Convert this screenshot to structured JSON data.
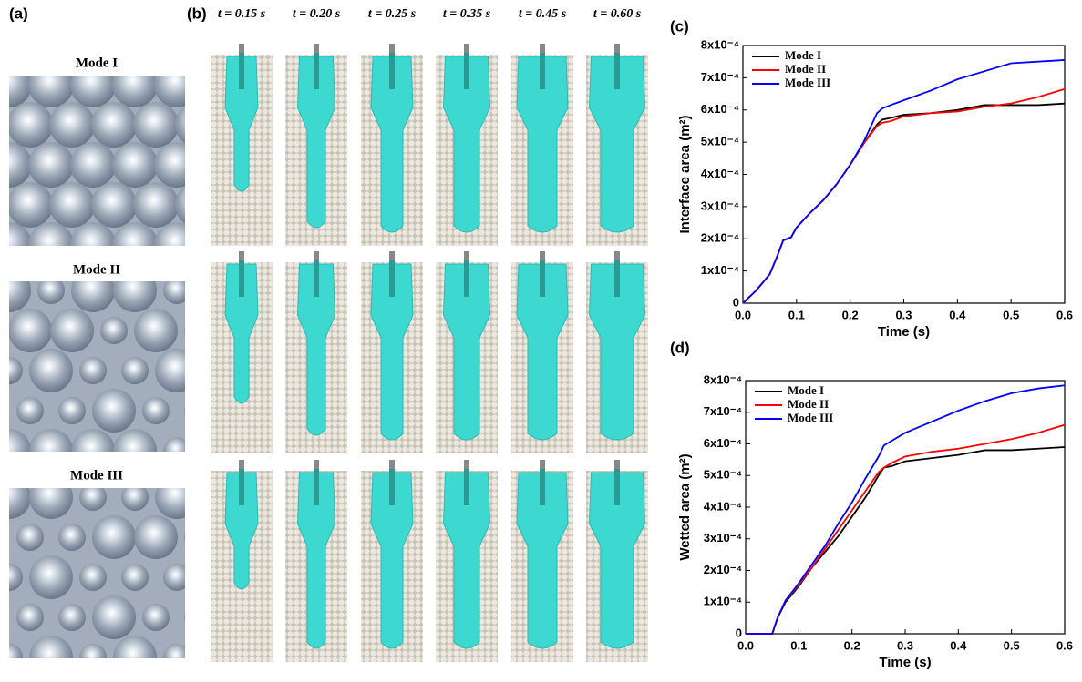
{
  "panels": {
    "a_label": "(a)",
    "b_label": "(b)",
    "c_label": "(c)",
    "d_label": "(d)",
    "modes": [
      "Mode I",
      "Mode II",
      "Mode III"
    ],
    "time_labels": [
      "t = 0.15 s",
      "t = 0.20 s",
      "t = 0.25 s",
      "t = 0.35 s",
      "t = 0.45 s",
      "t = 0.60 s"
    ]
  },
  "chart_data": [
    {
      "type": "line",
      "xlabel": "Time (s)",
      "ylabel": "Interface area (m²)",
      "legend": "upper left",
      "xlim": [
        0,
        0.6
      ],
      "xticks": [
        {
          "value": 0,
          "label": "0.0"
        },
        0.1,
        0.2,
        0.3,
        0.4,
        0.5,
        0.6
      ],
      "ylim": [
        0,
        0.0008
      ],
      "yticks": [
        0,
        {
          "value": 0.0001,
          "label": "1x10⁻⁴"
        },
        {
          "value": 0.0002,
          "label": "2x10⁻⁴"
        },
        {
          "value": 0.0003,
          "label": "3x10⁻⁴"
        },
        {
          "value": 0.0004,
          "label": "4x10⁻⁴"
        },
        {
          "value": 0.0005,
          "label": "5x10⁻⁴"
        },
        {
          "value": 0.0006,
          "label": "6x10⁻⁴"
        },
        {
          "value": 0.0007,
          "label": "7x10⁻⁴"
        },
        {
          "value": 0.0008,
          "label": "8x10⁻⁴"
        }
      ],
      "x": [
        0,
        0.025,
        0.05,
        0.065,
        0.075,
        0.09,
        0.1,
        0.125,
        0.15,
        0.175,
        0.2,
        0.225,
        0.25,
        0.26,
        0.275,
        0.3,
        0.35,
        0.4,
        0.45,
        0.5,
        0.55,
        0.6
      ],
      "series": [
        {
          "name": "Mode I",
          "color": "#000000",
          "values": [
            0,
            4e-05,
            9e-05,
            0.00015,
            0.000195,
            0.000205,
            0.000235,
            0.00028,
            0.00032,
            0.00037,
            0.00043,
            0.000495,
            0.000555,
            0.00057,
            0.000575,
            0.000585,
            0.00059,
            0.0006,
            0.000615,
            0.000615,
            0.000615,
            0.00062
          ]
        },
        {
          "name": "Mode II",
          "color": "#ff0000",
          "values": [
            0,
            4e-05,
            9e-05,
            0.00015,
            0.000195,
            0.000205,
            0.000235,
            0.00028,
            0.00032,
            0.00037,
            0.00043,
            0.000495,
            0.00055,
            0.00056,
            0.000565,
            0.00058,
            0.00059,
            0.000595,
            0.00061,
            0.00062,
            0.00064,
            0.000665
          ]
        },
        {
          "name": "Mode III",
          "color": "#0000ff",
          "values": [
            0,
            4e-05,
            9e-05,
            0.00015,
            0.000195,
            0.000205,
            0.000235,
            0.00028,
            0.00032,
            0.00037,
            0.00043,
            0.0005,
            0.00059,
            0.000605,
            0.000615,
            0.00063,
            0.00066,
            0.000695,
            0.00072,
            0.000745,
            0.00075,
            0.000755
          ]
        }
      ]
    },
    {
      "type": "line",
      "xlabel": "Time (s)",
      "ylabel": "Wetted area (m²)",
      "legend": "upper left",
      "xlim": [
        0,
        0.6
      ],
      "xticks": [
        {
          "value": 0,
          "label": "0.0"
        },
        0.1,
        0.2,
        0.3,
        0.4,
        0.5,
        0.6
      ],
      "ylim": [
        0,
        0.0008
      ],
      "yticks": [
        0,
        {
          "value": 0.0001,
          "label": "1x10⁻⁴"
        },
        {
          "value": 0.0002,
          "label": "2x10⁻⁴"
        },
        {
          "value": 0.0003,
          "label": "3x10⁻⁴"
        },
        {
          "value": 0.0004,
          "label": "4x10⁻⁴"
        },
        {
          "value": 0.0005,
          "label": "5x10⁻⁴"
        },
        {
          "value": 0.0006,
          "label": "6x10⁻⁴"
        },
        {
          "value": 0.0007,
          "label": "7x10⁻⁴"
        },
        {
          "value": 0.0008,
          "label": "8x10⁻⁴"
        }
      ],
      "x": [
        0,
        0.05,
        0.06,
        0.075,
        0.1,
        0.125,
        0.15,
        0.175,
        0.2,
        0.225,
        0.25,
        0.26,
        0.275,
        0.3,
        0.35,
        0.4,
        0.45,
        0.5,
        0.55,
        0.6
      ],
      "series": [
        {
          "name": "Mode I",
          "color": "#000000",
          "values": [
            0,
            0,
            5e-05,
            0.0001,
            0.00015,
            0.00021,
            0.00026,
            0.00031,
            0.00037,
            0.00043,
            0.0005,
            0.000525,
            0.00053,
            0.000545,
            0.000555,
            0.000565,
            0.00058,
            0.00058,
            0.000585,
            0.00059
          ]
        },
        {
          "name": "Mode II",
          "color": "#ff0000",
          "values": [
            0,
            0,
            5e-05,
            0.000105,
            0.000155,
            0.00021,
            0.00027,
            0.00033,
            0.00039,
            0.00045,
            0.00051,
            0.000525,
            0.00054,
            0.00056,
            0.000575,
            0.000585,
            0.0006,
            0.000615,
            0.000635,
            0.00066
          ]
        },
        {
          "name": "Mode III",
          "color": "#0000ff",
          "values": [
            0,
            0,
            5e-05,
            0.000105,
            0.00016,
            0.00022,
            0.00028,
            0.00035,
            0.000415,
            0.00049,
            0.00056,
            0.000595,
            0.00061,
            0.000635,
            0.00067,
            0.000705,
            0.000735,
            0.00076,
            0.000775,
            0.000785
          ]
        }
      ]
    }
  ]
}
